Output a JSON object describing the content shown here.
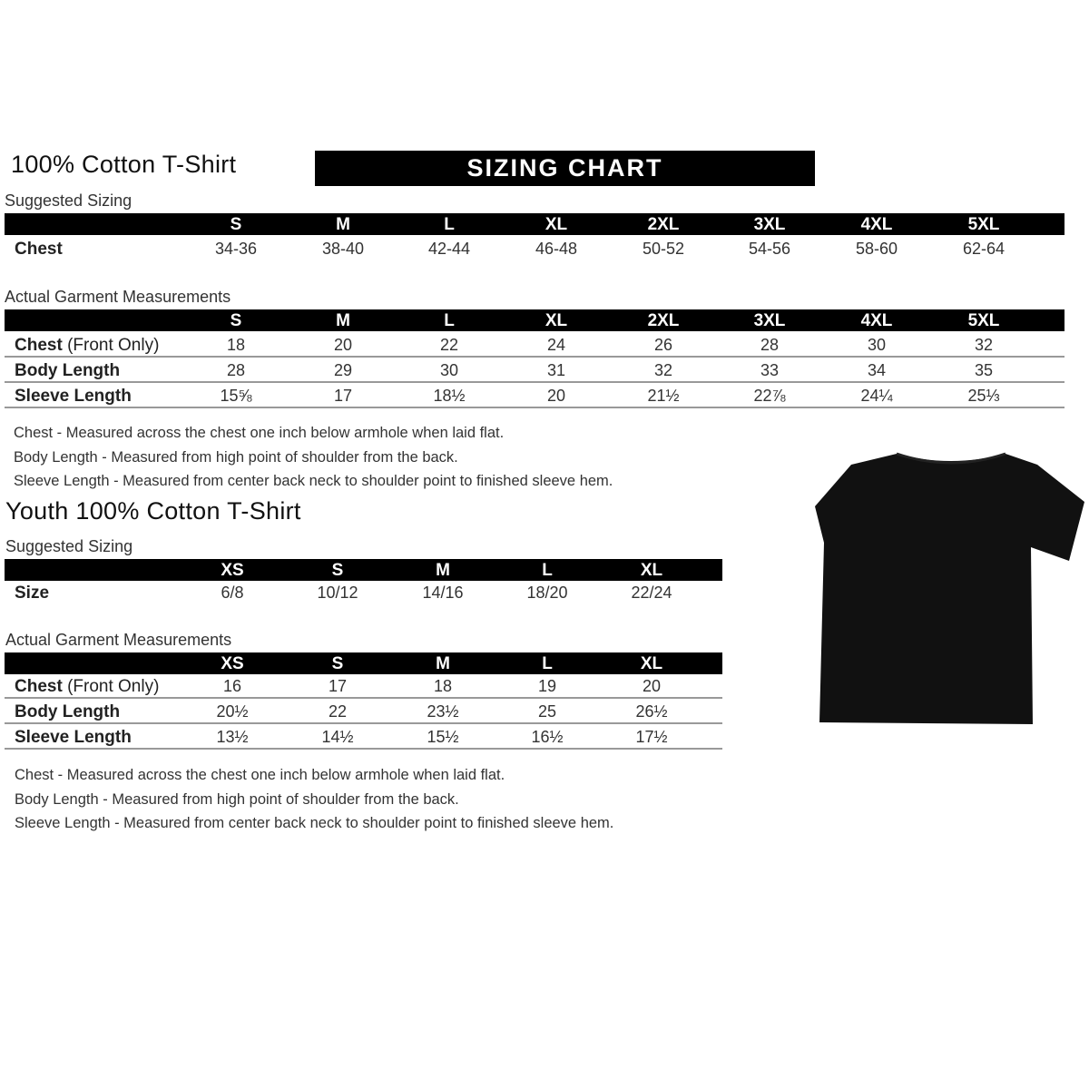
{
  "adult": {
    "title": "100% Cotton T-Shirt",
    "banner": "SIZING CHART",
    "suggested": {
      "heading": "Suggested Sizing",
      "sizes": [
        "S",
        "M",
        "L",
        "XL",
        "2XL",
        "3XL",
        "4XL",
        "5XL"
      ],
      "rows": [
        {
          "label": "Chest",
          "label_extra": "",
          "values": [
            "34-36",
            "38-40",
            "42-44",
            "46-48",
            "50-52",
            "54-56",
            "58-60",
            "62-64"
          ]
        }
      ]
    },
    "actual": {
      "heading": "Actual Garment Measurements",
      "sizes": [
        "S",
        "M",
        "L",
        "XL",
        "2XL",
        "3XL",
        "4XL",
        "5XL"
      ],
      "rows": [
        {
          "label": "Chest",
          "label_extra": " (Front Only)",
          "values": [
            "18",
            "20",
            "22",
            "24",
            "26",
            "28",
            "30",
            "32"
          ]
        },
        {
          "label": "Body Length",
          "label_extra": "",
          "values": [
            "28",
            "29",
            "30",
            "31",
            "32",
            "33",
            "34",
            "35"
          ]
        },
        {
          "label": "Sleeve Length",
          "label_extra": "",
          "values": [
            "15⅝",
            "17",
            "18½",
            "20",
            "21½",
            "22⅞",
            "24¼",
            "25⅓"
          ]
        }
      ]
    },
    "notes": [
      "Chest - Measured across the chest one inch below armhole when laid flat.",
      "Body Length - Measured from high point of shoulder from the back.",
      "Sleeve Length - Measured from center back neck to shoulder point to finished sleeve hem."
    ]
  },
  "youth": {
    "title": "Youth 100% Cotton T-Shirt",
    "suggested": {
      "heading": "Suggested Sizing",
      "sizes": [
        "XS",
        "S",
        "M",
        "L",
        "XL"
      ],
      "rows": [
        {
          "label": "Size",
          "label_extra": "",
          "values": [
            "6/8",
            "10/12",
            "14/16",
            "18/20",
            "22/24"
          ]
        }
      ]
    },
    "actual": {
      "heading": "Actual Garment Measurements",
      "sizes": [
        "XS",
        "S",
        "M",
        "L",
        "XL"
      ],
      "rows": [
        {
          "label": "Chest",
          "label_extra": " (Front Only)",
          "values": [
            "16",
            "17",
            "18",
            "19",
            "20"
          ]
        },
        {
          "label": "Body Length",
          "label_extra": "",
          "values": [
            "20½",
            "22",
            "23½",
            "25",
            "26½"
          ]
        },
        {
          "label": "Sleeve Length",
          "label_extra": "",
          "values": [
            "13½",
            "14½",
            "15½",
            "16½",
            "17½"
          ]
        }
      ]
    },
    "notes": [
      "Chest - Measured across the chest one inch below armhole when laid flat.",
      "Body Length - Measured from high point of shoulder from the back.",
      "Sleeve Length - Measured from center back neck to shoulder point to finished sleeve hem."
    ]
  },
  "colors": {
    "header_bg": "#000000",
    "shirt": "#111111"
  },
  "image": {
    "icon": "tshirt-icon"
  }
}
